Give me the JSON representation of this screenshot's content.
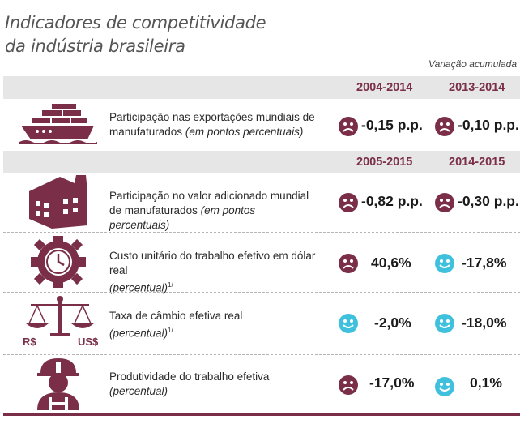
{
  "title_line1": "Indicadores de competitividade",
  "title_line2": "da indústria brasileira",
  "subtitle": "Variação acumulada",
  "colors": {
    "accent": "#7a2e47",
    "good": "#3fc1de",
    "bad": "#7a2e47",
    "header_bg": "#e6e6e6"
  },
  "headers": [
    {
      "period1": "2004-2014",
      "period2": "2013-2014"
    },
    {
      "period1": "2005-2015",
      "period2": "2014-2015"
    }
  ],
  "rows": [
    {
      "icon": "cargo-ship-icon",
      "label": "Participação nas exportações mundiais de manufaturados",
      "unit": "(em pontos percentuais)",
      "footnote": "",
      "value1": "-0,15 p.p.",
      "face1": "sad",
      "value2": "-0,10 p.p.",
      "face2": "sad"
    },
    {
      "icon": "factory-icon",
      "label": "Participação no valor adicionado mundial de manufaturados",
      "unit": "(em pontos percentuais)",
      "footnote": "",
      "value1": "-0,82 p.p.",
      "face1": "sad",
      "value2": "-0,30 p.p.",
      "face2": "sad"
    },
    {
      "icon": "gear-clock-icon",
      "label": "Custo unitário do trabalho efetivo em dólar real",
      "unit": "(percentual)",
      "footnote": "1/",
      "value1": "40,6%",
      "face1": "sad",
      "value2": "-17,8%",
      "face2": "happy"
    },
    {
      "icon": "balance-scale-icon",
      "label": "Taxa de câmbio efetiva real",
      "unit": "(percentual)",
      "footnote": "1/",
      "value1": "-2,0%",
      "face1": "happy",
      "value2": "-18,0%",
      "face2": "happy",
      "icon_left_text": "R$",
      "icon_right_text": "US$"
    },
    {
      "icon": "worker-helmet-icon",
      "label": "Produtividade do trabalho efetiva",
      "unit": "(percentual)",
      "footnote": "",
      "value1": "-17,0%",
      "face1": "sad",
      "value2": "0,1%",
      "face2": "happy"
    }
  ]
}
